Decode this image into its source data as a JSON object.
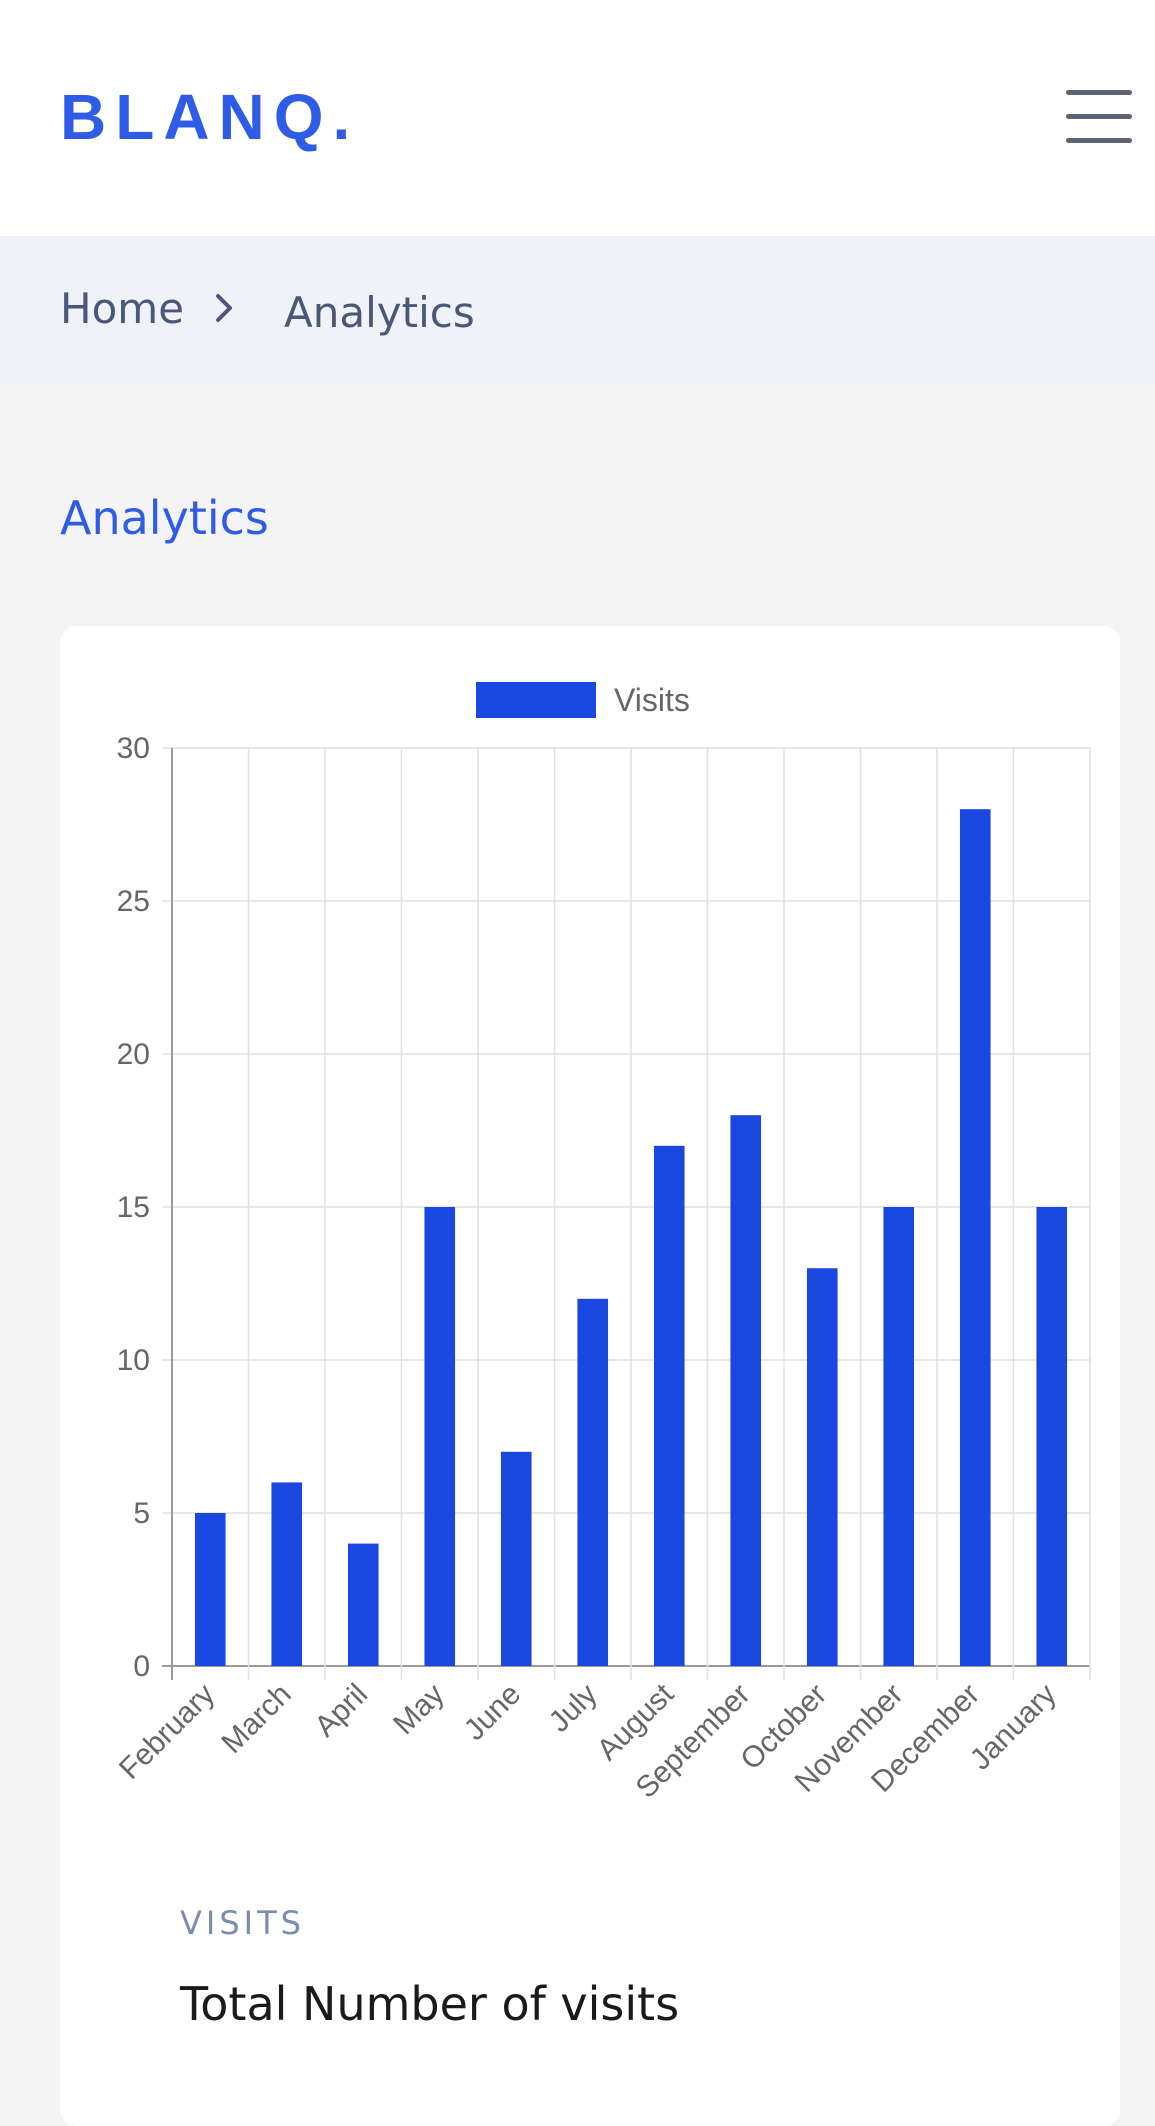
{
  "header": {
    "logo": "BLANQ.",
    "menu_icon": "hamburger-menu-icon"
  },
  "breadcrumb": {
    "home": "Home",
    "separator_icon": "chevron-right-icon",
    "current": "Analytics"
  },
  "page": {
    "title": "Analytics"
  },
  "stat": {
    "label": "VISITS",
    "description": "Total Number of visits"
  },
  "colors": {
    "brand": "#2f5ce6",
    "bar": "#1a47e0"
  },
  "chart_data": {
    "type": "bar",
    "categories": [
      "February",
      "March",
      "April",
      "May",
      "June",
      "July",
      "August",
      "September",
      "October",
      "November",
      "December",
      "January"
    ],
    "series": [
      {
        "name": "Visits",
        "values": [
          5,
          6,
          4,
          15,
          7,
          12,
          17,
          18,
          13,
          15,
          28,
          15
        ]
      }
    ],
    "ylim": [
      0,
      30
    ],
    "yticks": [
      0,
      5,
      10,
      15,
      20,
      25,
      30
    ],
    "grid": true,
    "legend": "top-center"
  }
}
